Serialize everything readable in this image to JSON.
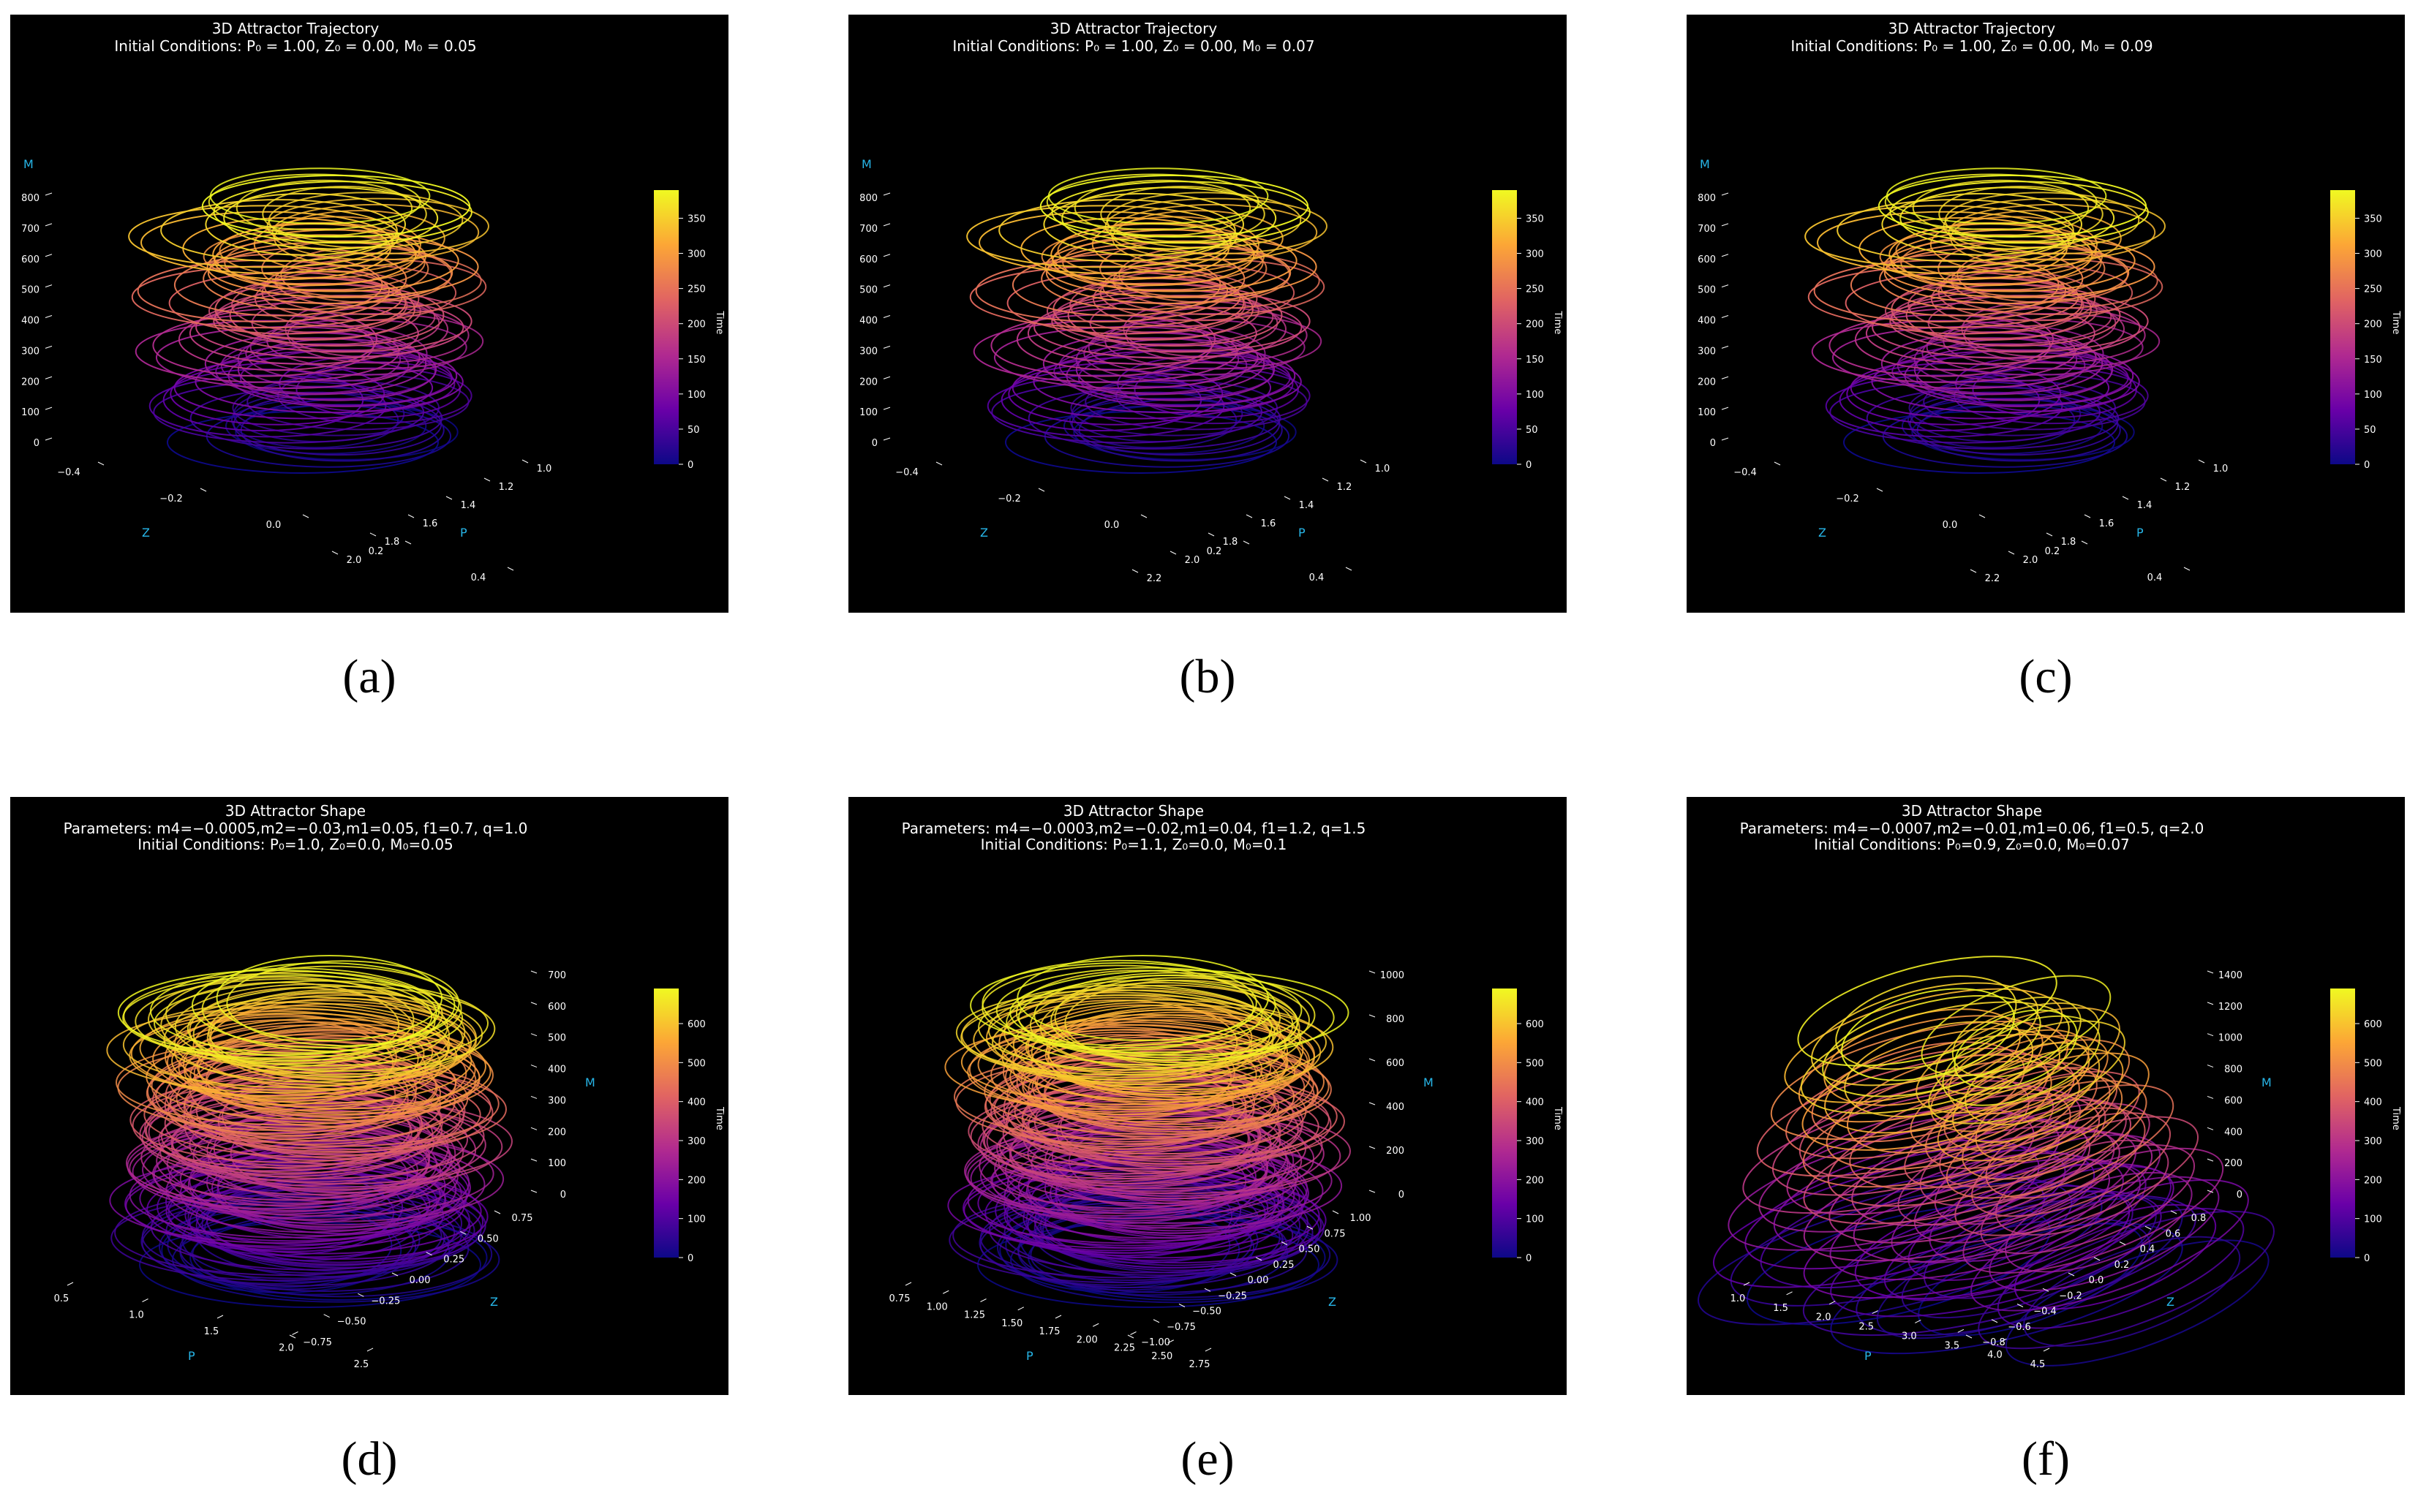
{
  "chart_data": [
    {
      "type": "line",
      "panel_caption": "(a)",
      "title": "3D Attractor Trajectory",
      "subtitle_lines": [
        "Initial Conditions: P₀ = 1.00, Z₀ = 0.00, M₀ = 0.05"
      ],
      "variant": "trajectory",
      "params": {
        "m0": 0.05
      },
      "m_axis": {
        "label": "M",
        "ticks": [
          "0",
          "100",
          "200",
          "300",
          "400",
          "500",
          "600",
          "700",
          "800"
        ],
        "range": [
          0,
          850
        ]
      },
      "z_axis": {
        "label": "Z",
        "ticks": [
          "−0.4",
          "−0.2",
          "0.0",
          "0.2",
          "0.4"
        ]
      },
      "p_axis": {
        "label": "P",
        "ticks": [
          "1.0",
          "1.2",
          "1.4",
          "1.6",
          "1.8",
          "2.0"
        ]
      },
      "colorbar": {
        "label": "Time",
        "ticks": [
          "0",
          "50",
          "100",
          "150",
          "200",
          "250",
          "300",
          "350"
        ],
        "range": [
          0,
          390
        ],
        "colormap": [
          "#0d0887",
          "#6a00a8",
          "#b12a90",
          "#e16462",
          "#fca636",
          "#f0f921"
        ]
      },
      "loops": 40
    },
    {
      "type": "line",
      "panel_caption": "(b)",
      "title": "3D Attractor Trajectory",
      "subtitle_lines": [
        "Initial Conditions: P₀ = 1.00, Z₀ = 0.00, M₀ = 0.07"
      ],
      "variant": "trajectory",
      "params": {
        "m0": 0.07
      },
      "m_axis": {
        "label": "M",
        "ticks": [
          "0",
          "100",
          "200",
          "300",
          "400",
          "500",
          "600",
          "700",
          "800"
        ],
        "range": [
          0,
          850
        ]
      },
      "z_axis": {
        "label": "Z",
        "ticks": [
          "−0.4",
          "−0.2",
          "0.0",
          "0.2",
          "0.4"
        ]
      },
      "p_axis": {
        "label": "P",
        "ticks": [
          "1.0",
          "1.2",
          "1.4",
          "1.6",
          "1.8",
          "2.0",
          "2.2"
        ]
      },
      "colorbar": {
        "label": "Time",
        "ticks": [
          "0",
          "50",
          "100",
          "150",
          "200",
          "250",
          "300",
          "350"
        ],
        "range": [
          0,
          390
        ],
        "colormap": [
          "#0d0887",
          "#6a00a8",
          "#b12a90",
          "#e16462",
          "#fca636",
          "#f0f921"
        ]
      },
      "loops": 40
    },
    {
      "type": "line",
      "panel_caption": "(c)",
      "title": "3D Attractor Trajectory",
      "subtitle_lines": [
        "Initial Conditions: P₀ = 1.00, Z₀ = 0.00, M₀ = 0.09"
      ],
      "variant": "trajectory",
      "params": {
        "m0": 0.09
      },
      "m_axis": {
        "label": "M",
        "ticks": [
          "0",
          "100",
          "200",
          "300",
          "400",
          "500",
          "600",
          "700",
          "800"
        ],
        "range": [
          0,
          850
        ]
      },
      "z_axis": {
        "label": "Z",
        "ticks": [
          "−0.4",
          "−0.2",
          "0.0",
          "0.2",
          "0.4"
        ]
      },
      "p_axis": {
        "label": "P",
        "ticks": [
          "1.0",
          "1.2",
          "1.4",
          "1.6",
          "1.8",
          "2.0",
          "2.2"
        ]
      },
      "colorbar": {
        "label": "Time",
        "ticks": [
          "0",
          "50",
          "100",
          "150",
          "200",
          "250",
          "300",
          "350"
        ],
        "range": [
          0,
          390
        ],
        "colormap": [
          "#0d0887",
          "#6a00a8",
          "#b12a90",
          "#e16462",
          "#fca636",
          "#f0f921"
        ]
      },
      "loops": 40
    },
    {
      "type": "line",
      "panel_caption": "(d)",
      "title": "3D Attractor Shape",
      "subtitle_lines": [
        "Parameters: m4=−0.0005,m2=−0.03,m1=0.05, f1=0.7, q=1.0",
        "Initial Conditions: P₀=1.0, Z₀=0.0, M₀=0.05"
      ],
      "variant": "shape",
      "params": {
        "m4": -0.0005,
        "m2": -0.03,
        "m1": 0.05,
        "f1": 0.7,
        "q": 1.0,
        "p0": 1.0,
        "z0": 0.0,
        "m0": 0.05
      },
      "m_axis": {
        "label": "M",
        "ticks": [
          "0",
          "100",
          "200",
          "300",
          "400",
          "500",
          "600",
          "700"
        ],
        "range": [
          0,
          750
        ]
      },
      "z_axis": {
        "label": "Z",
        "ticks": [
          "−0.75",
          "−0.50",
          "−0.25",
          "0.00",
          "0.25",
          "0.50",
          "0.75"
        ]
      },
      "p_axis": {
        "label": "P",
        "ticks": [
          "0.5",
          "1.0",
          "1.5",
          "2.0",
          "2.5"
        ]
      },
      "colorbar": {
        "label": "Time",
        "ticks": [
          "0",
          "100",
          "200",
          "300",
          "400",
          "500",
          "600"
        ],
        "range": [
          0,
          690
        ],
        "colormap": [
          "#0d0887",
          "#6a00a8",
          "#b12a90",
          "#e16462",
          "#fca636",
          "#f0f921"
        ]
      },
      "loops": 48
    },
    {
      "type": "line",
      "panel_caption": "(e)",
      "title": "3D Attractor Shape",
      "subtitle_lines": [
        "Parameters: m4=−0.0003,m2=−0.02,m1=0.04, f1=1.2, q=1.5",
        "Initial Conditions: P₀=1.1, Z₀=0.0, M₀=0.1"
      ],
      "variant": "shape",
      "params": {
        "m4": -0.0003,
        "m2": -0.02,
        "m1": 0.04,
        "f1": 1.2,
        "q": 1.5,
        "p0": 1.1,
        "z0": 0.0,
        "m0": 0.1
      },
      "m_axis": {
        "label": "M",
        "ticks": [
          "0",
          "200",
          "400",
          "600",
          "800",
          "1000"
        ],
        "range": [
          0,
          1050
        ]
      },
      "z_axis": {
        "label": "Z",
        "ticks": [
          "−1.00",
          "−0.75",
          "−0.50",
          "−0.25",
          "0.00",
          "0.25",
          "0.50",
          "0.75",
          "1.00"
        ]
      },
      "p_axis": {
        "label": "P",
        "ticks": [
          "0.75",
          "1.00",
          "1.25",
          "1.50",
          "1.75",
          "2.00",
          "2.25",
          "2.50",
          "2.75"
        ]
      },
      "colorbar": {
        "label": "Time",
        "ticks": [
          "0",
          "100",
          "200",
          "300",
          "400",
          "500",
          "600"
        ],
        "range": [
          0,
          690
        ],
        "colormap": [
          "#0d0887",
          "#6a00a8",
          "#b12a90",
          "#e16462",
          "#fca636",
          "#f0f921"
        ]
      },
      "loops": 52
    },
    {
      "type": "line",
      "panel_caption": "(f)",
      "title": "3D Attractor Shape",
      "subtitle_lines": [
        "Parameters: m4=−0.0007,m2=−0.01,m1=0.06, f1=0.5, q=2.0",
        "Initial Conditions: P₀=0.9, Z₀=0.0, M₀=0.07"
      ],
      "variant": "slanted",
      "params": {
        "m4": -0.0007,
        "m2": -0.01,
        "m1": 0.06,
        "f1": 0.5,
        "q": 2.0,
        "p0": 0.9,
        "z0": 0.0,
        "m0": 0.07
      },
      "m_axis": {
        "label": "M",
        "ticks": [
          "0",
          "200",
          "400",
          "600",
          "800",
          "1000",
          "1200",
          "1400"
        ],
        "range": [
          0,
          1500
        ]
      },
      "z_axis": {
        "label": "Z",
        "ticks": [
          "−0.8",
          "−0.6",
          "−0.4",
          "−0.2",
          "0.0",
          "0.2",
          "0.4",
          "0.6",
          "0.8"
        ]
      },
      "p_axis": {
        "label": "P",
        "ticks": [
          "1.0",
          "1.5",
          "2.0",
          "2.5",
          "3.0",
          "3.5",
          "4.0",
          "4.5"
        ]
      },
      "colorbar": {
        "label": "Time",
        "ticks": [
          "0",
          "100",
          "200",
          "300",
          "400",
          "500",
          "600"
        ],
        "range": [
          0,
          690
        ],
        "colormap": [
          "#0d0887",
          "#6a00a8",
          "#b12a90",
          "#e16462",
          "#fca636",
          "#f0f921"
        ]
      },
      "loops": 46
    }
  ]
}
